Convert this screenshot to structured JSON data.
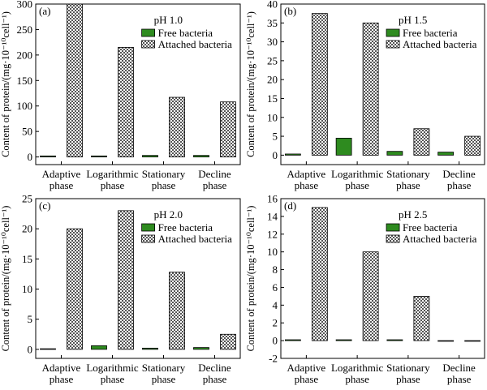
{
  "colors": {
    "free": "#2e8b1f",
    "attached_pattern_bg": "#ffffff",
    "attached_pattern_fg": "#555555",
    "axis": "#000000"
  },
  "chart_data": [
    {
      "type": "bar",
      "panel_label": "(a)",
      "title": "pH 1.0",
      "ylabel": "Content of protein/(mg·10⁻¹⁰cell⁻¹)",
      "categories": [
        [
          "Adaptive",
          "phase"
        ],
        [
          "Logarithmic",
          "phase"
        ],
        [
          "Stationary",
          "phase"
        ],
        [
          "Decline",
          "phase"
        ]
      ],
      "ylim": [
        -15,
        300
      ],
      "yticks": [
        0,
        50,
        100,
        150,
        200,
        250,
        300
      ],
      "series": [
        {
          "name": "Free bacteria",
          "values": [
            2,
            2,
            3,
            3
          ]
        },
        {
          "name": "Attached bacteria",
          "values": [
            300,
            215,
            117,
            108
          ]
        }
      ],
      "legend": "top-right"
    },
    {
      "type": "bar",
      "panel_label": "(b)",
      "title": "pH 1.5",
      "ylabel": "Content of protein/(mg·10⁻¹⁰cell⁻¹)",
      "categories": [
        [
          "Adaptive",
          "phase"
        ],
        [
          "Logarithmic",
          "phase"
        ],
        [
          "Stationary",
          "phase"
        ],
        [
          "Decline",
          "phase"
        ]
      ],
      "ylim": [
        -2.5,
        40
      ],
      "yticks": [
        0,
        5,
        10,
        15,
        20,
        25,
        30,
        35,
        40
      ],
      "series": [
        {
          "name": "Free bacteria",
          "values": [
            0.3,
            4.5,
            1.0,
            0.8
          ]
        },
        {
          "name": "Attached bacteria",
          "values": [
            37.5,
            35,
            7,
            5
          ]
        }
      ],
      "legend": "top-right"
    },
    {
      "type": "bar",
      "panel_label": "(c)",
      "title": "pH 2.0",
      "ylabel": "Content of protein/(mg·10⁻¹⁰cell⁻¹)",
      "categories": [
        [
          "Adaptive",
          "phase"
        ],
        [
          "Logarithmic",
          "phase"
        ],
        [
          "Stationary",
          "phase"
        ],
        [
          "Decline",
          "phase"
        ]
      ],
      "ylim": [
        -1.5,
        25
      ],
      "yticks": [
        0,
        5,
        10,
        15,
        20,
        25
      ],
      "series": [
        {
          "name": "Free bacteria",
          "values": [
            0.1,
            0.6,
            0.2,
            0.3
          ]
        },
        {
          "name": "Attached bacteria",
          "values": [
            20,
            23,
            12.8,
            2.5
          ]
        }
      ],
      "legend": "top-right"
    },
    {
      "type": "bar",
      "panel_label": "(d)",
      "title": "pH 2.5",
      "ylabel": "Content of protein/(mg·10⁻¹⁰cell⁻¹)",
      "categories": [
        [
          "Adaptive",
          "phase"
        ],
        [
          "Logarithmic",
          "phase"
        ],
        [
          "Stationary",
          "phase"
        ],
        [
          "Decline",
          "phase"
        ]
      ],
      "ylim": [
        -2,
        16
      ],
      "yticks": [
        -2,
        0,
        2,
        4,
        6,
        8,
        10,
        12,
        14,
        16
      ],
      "series": [
        {
          "name": "Free bacteria",
          "values": [
            0.1,
            0.1,
            0.1,
            0
          ]
        },
        {
          "name": "Attached bacteria",
          "values": [
            15,
            10,
            5,
            0
          ]
        }
      ],
      "legend": "top-right"
    }
  ]
}
